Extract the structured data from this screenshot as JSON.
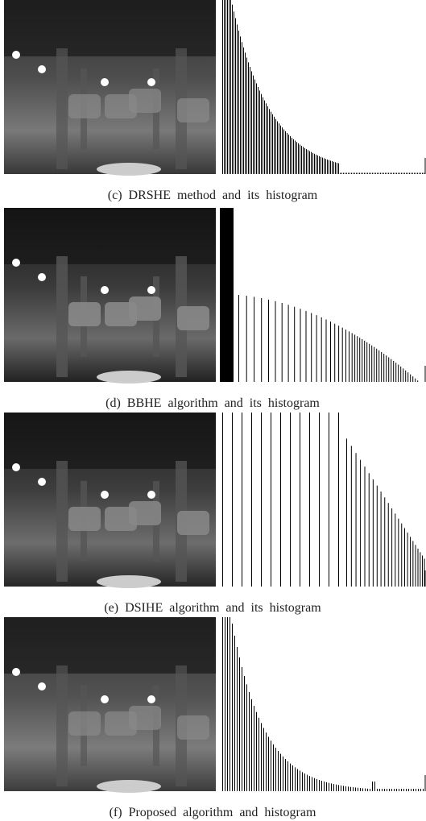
{
  "panels": [
    {
      "caption": "(c) DRSHE method and its histogram"
    },
    {
      "caption": "(d) BBHE algorithm and its histogram"
    },
    {
      "caption": "(e) DSIHE algorithm and its histogram"
    },
    {
      "caption": "(f) Proposed algorithm and histogram"
    }
  ]
}
